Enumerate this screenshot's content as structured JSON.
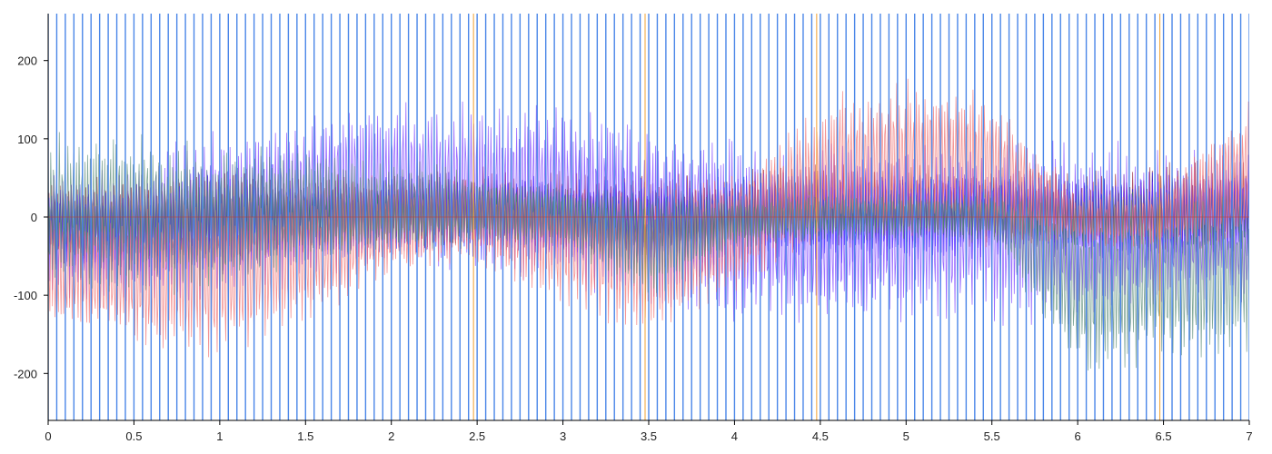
{
  "chart_data": {
    "type": "line",
    "title": "",
    "xlabel": "",
    "ylabel": "",
    "xlim": [
      0,
      7
    ],
    "ylim": [
      -260,
      260
    ],
    "grid": false,
    "legend": "none",
    "x_ticks": [
      0,
      0.5,
      1,
      1.5,
      2,
      2.5,
      3,
      3.5,
      4,
      4.5,
      5,
      5.5,
      6,
      6.5,
      7
    ],
    "x_tick_labels": [
      "0",
      "0.5",
      "1",
      "1.5",
      "2",
      "2.5",
      "3",
      "3.5",
      "4",
      "4.5",
      "5",
      "5.5",
      "6",
      "6.5",
      "7"
    ],
    "y_ticks": [
      200,
      100,
      0,
      -100,
      -200
    ],
    "y_tick_labels": [
      "200",
      "100",
      "0",
      "-100",
      "-200"
    ],
    "marker_lines": {
      "color": "#4a86e8",
      "spacing": 0.05,
      "span": [
        0,
        7
      ],
      "ymin": -260,
      "ymax": 260
    },
    "accent_marker_lines": {
      "color": "#f0a030",
      "x": [
        2.5,
        3.5,
        4.5,
        6.5
      ]
    },
    "series": [
      {
        "color": "#8c1a2e",
        "envelope": {
          "x": [
            0,
            0.5,
            1,
            1.5,
            2,
            2.5,
            3,
            3.5,
            4,
            4.5,
            5,
            5.5,
            6,
            6.5,
            7
          ],
          "upper": [
            50,
            55,
            60,
            55,
            60,
            70,
            60,
            55,
            60,
            80,
            70,
            65,
            60,
            70,
            80
          ],
          "lower": [
            -60,
            -60,
            -60,
            -50,
            -40,
            -40,
            -50,
            -55,
            -45,
            -40,
            -40,
            -40,
            -45,
            -50,
            -40
          ]
        }
      },
      {
        "color": "#1a1aff",
        "envelope": {
          "x": [
            0,
            0.5,
            1,
            1.5,
            2,
            2.5,
            3,
            3.5,
            4,
            4.5,
            5,
            5.5,
            6,
            6.5,
            7
          ],
          "upper": [
            40,
            45,
            60,
            50,
            55,
            60,
            55,
            50,
            55,
            60,
            60,
            60,
            55,
            60,
            60
          ],
          "lower": [
            -60,
            -80,
            -80,
            -60,
            -50,
            -55,
            -60,
            -70,
            -60,
            -60,
            -60,
            -55,
            -55,
            -60,
            -55
          ]
        }
      },
      {
        "color": "#2e8b3a",
        "envelope": {
          "x": [
            0,
            0.5,
            1,
            1.5,
            2,
            2.5,
            3,
            3.5,
            4,
            4.5,
            5,
            5.5,
            6,
            6.5,
            7
          ],
          "upper": [
            30,
            30,
            50,
            40,
            35,
            40,
            40,
            35,
            40,
            40,
            40,
            40,
            40,
            40,
            40
          ],
          "lower": [
            -30,
            -40,
            -40,
            -50,
            -35,
            -35,
            -40,
            -60,
            -40,
            -30,
            -30,
            -35,
            -40,
            -40,
            -35
          ]
        }
      },
      {
        "color": "#7a3cff",
        "envelope": {
          "x": [
            0,
            0.5,
            1,
            1.5,
            2,
            2.5,
            3,
            3.5,
            4,
            4.5,
            5,
            5.5,
            6,
            6.5,
            7
          ],
          "upper": [
            60,
            80,
            120,
            130,
            160,
            150,
            150,
            120,
            110,
            100,
            100,
            100,
            100,
            100,
            100
          ],
          "lower": [
            -100,
            -120,
            -110,
            -90,
            -70,
            -80,
            -100,
            -130,
            -140,
            -140,
            -140,
            -140,
            -140,
            -130,
            -120
          ]
        }
      },
      {
        "color": "#f07070",
        "envelope": {
          "x": [
            0,
            0.5,
            1,
            1.5,
            2,
            2.5,
            3,
            3.5,
            4,
            4.5,
            5,
            5.5,
            6,
            6.5,
            7
          ],
          "upper": [
            20,
            20,
            30,
            40,
            60,
            50,
            40,
            30,
            60,
            160,
            180,
            165,
            30,
            40,
            160
          ],
          "lower": [
            -140,
            -170,
            -190,
            -140,
            -80,
            -60,
            -120,
            -160,
            -100,
            -40,
            -40,
            -40,
            -40,
            -40,
            -40
          ]
        }
      },
      {
        "color": "#5b8c78",
        "envelope": {
          "x": [
            0,
            0.5,
            1,
            1.5,
            2,
            2.5,
            3,
            3.5,
            4,
            4.5,
            5,
            5.5,
            6,
            6.5,
            7
          ],
          "upper": [
            115,
            110,
            95,
            90,
            80,
            60,
            40,
            30,
            30,
            30,
            30,
            30,
            30,
            30,
            30
          ],
          "lower": [
            -90,
            -100,
            -110,
            -60,
            -50,
            -40,
            -40,
            -110,
            -40,
            -30,
            -30,
            -30,
            -210,
            -190,
            -180
          ]
        }
      }
    ]
  }
}
